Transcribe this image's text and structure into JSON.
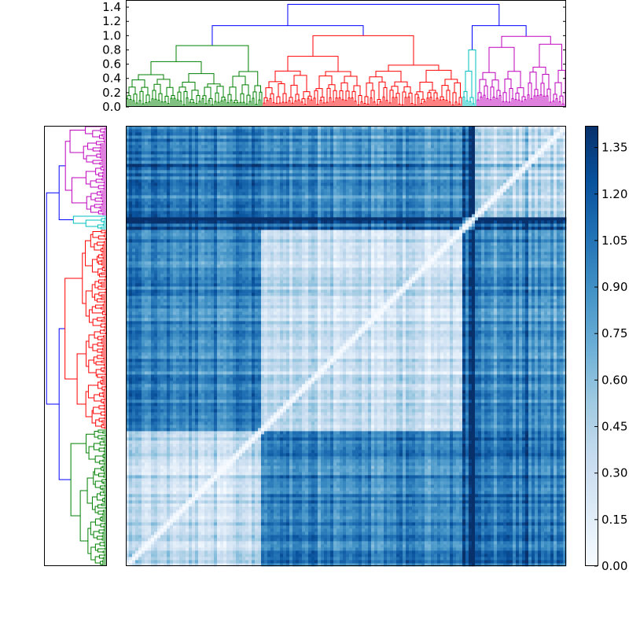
{
  "chart_data": [
    {
      "type": "heatmap",
      "name": "distance-matrix",
      "title": "",
      "xlabel": "",
      "ylabel": "",
      "n_leaves": 280,
      "colormap": "Blues",
      "vmin": 0.0,
      "vmax": 1.42,
      "cluster_order": [
        "green",
        "red",
        "cyan",
        "magenta"
      ],
      "cluster_sizes": [
        87,
        127,
        9,
        57
      ],
      "cluster_mean_distance": [
        [
          0.35,
          0.95,
          1.2,
          1.0
        ],
        [
          0.95,
          0.3,
          1.1,
          0.85
        ],
        [
          1.2,
          1.1,
          0.45,
          1.15
        ],
        [
          1.0,
          0.85,
          1.15,
          0.35
        ]
      ],
      "diagonal": 0.0
    },
    {
      "type": "dendrogram",
      "name": "column-dendrogram",
      "orientation": "top",
      "ylim": [
        0.0,
        1.5
      ],
      "yticks": [
        "0.0",
        "0.2",
        "0.4",
        "0.6",
        "0.8",
        "1.0",
        "1.2",
        "1.4"
      ],
      "ytick_values": [
        0.0,
        0.2,
        0.4,
        0.6,
        0.8,
        1.0,
        1.2,
        1.4
      ],
      "root_height": 1.44,
      "merge_heights": {
        "green_red": 1.14,
        "cyan_magenta": 1.14,
        "root": 1.44
      },
      "cluster_heights": {
        "green": 0.86,
        "red": 1.0,
        "cyan": 0.8,
        "magenta": 0.99
      },
      "link_color": "#0000ff"
    },
    {
      "type": "dendrogram",
      "name": "row-dendrogram",
      "orientation": "left",
      "root_height": 1.44,
      "link_color": "#0000ff"
    },
    {
      "type": "colorbar",
      "name": "colorbar",
      "ylim": [
        0.0,
        1.42
      ],
      "tick_labels": [
        "0.00",
        "0.15",
        "0.30",
        "0.45",
        "0.60",
        "0.75",
        "0.90",
        "1.05",
        "1.20",
        "1.35"
      ],
      "tick_values": [
        0.0,
        0.15,
        0.3,
        0.45,
        0.6,
        0.75,
        0.9,
        1.05,
        1.2,
        1.35
      ]
    }
  ],
  "colors": {
    "green": "#008000",
    "red": "#ff0000",
    "cyan": "#00bfbf",
    "magenta": "#bf00bf",
    "blue": "#0000ff",
    "cmap_low": "#f7fbff",
    "cmap_high": "#08306b"
  }
}
